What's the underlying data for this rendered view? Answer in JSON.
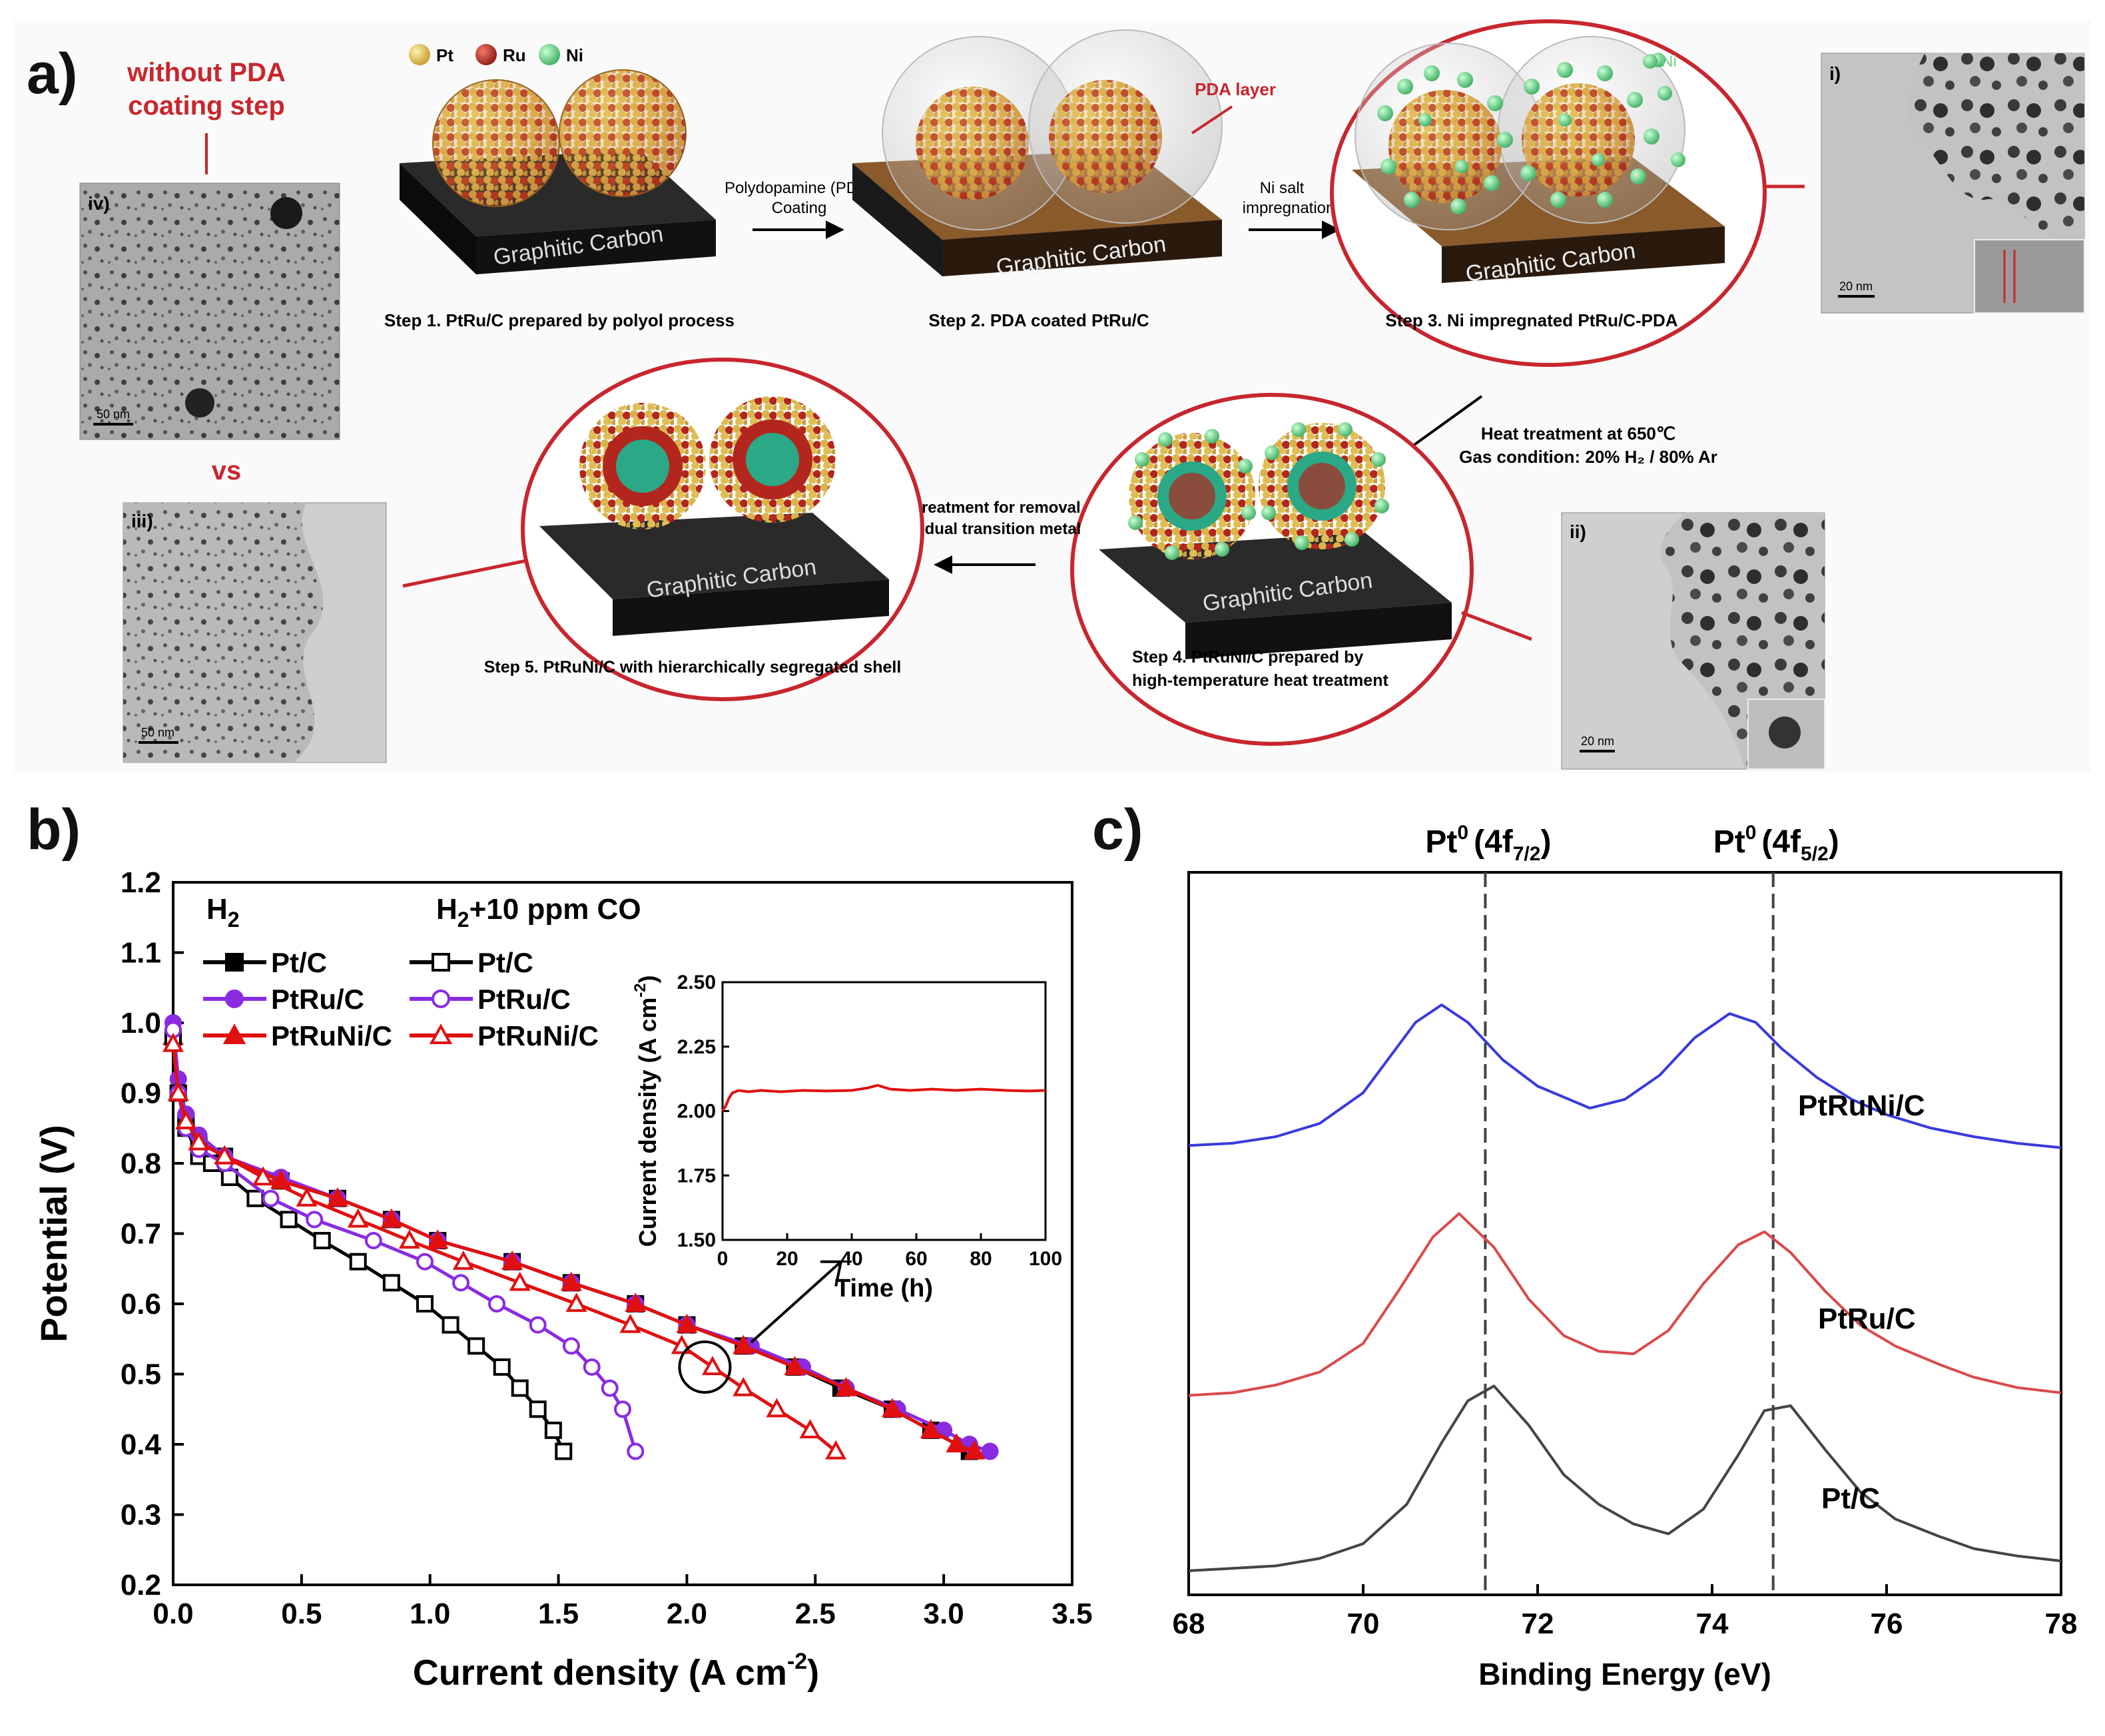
{
  "colors": {
    "pt": "#d8b44a",
    "ru": "#b3261e",
    "ni": "#6fd18a",
    "accent_red": "#c8262e",
    "pda": "#8a5a2b",
    "carbon": "#1f1f1f",
    "blue": "#3a3adb",
    "purple": "#8a2be2",
    "black": "#000000",
    "grey": "#444444",
    "light_red": "#d94a4a"
  },
  "panel_a": {
    "label": "a)",
    "without_pda_line1": "without PDA",
    "without_pda_line2": "coating step",
    "vs": "vs",
    "legend": {
      "pt": "Pt",
      "ru": "Ru",
      "ni": "Ni"
    },
    "ni_label": "Ni",
    "pda_layer": "PDA layer",
    "carbon_label": "Graphitic Carbon",
    "arrow1_line1": "Polydopamine (PDA)",
    "arrow1_line2": "Coating",
    "arrow2_line1": "Ni salt",
    "arrow2_line2": "impregnation",
    "heat_line1": "Heat treatment at 650℃",
    "heat_line2": "Gas condition: 20% H₂ / 80% Ar",
    "acid_line1": "Acid treatment for removal",
    "acid_line2": "of residual transition metal",
    "step1": "Step 1. PtRu/C prepared by polyol process",
    "step2": "Step 2. PDA coated PtRu/C",
    "step3": "Step 3. Ni impregnated PtRu/C-PDA",
    "step4_line1": "Step 4. PtRuNi/C prepared by",
    "step4_line2": "high-temperature heat treatment",
    "step5": "Step 5. PtRuNi/C with hierarchically segregated shell",
    "tem": [
      {
        "id": "i)",
        "scale": "20 nm"
      },
      {
        "id": "ii)",
        "scale": "20 nm"
      },
      {
        "id": "iii)",
        "scale": "50 nm"
      },
      {
        "id": "iv)",
        "scale": "50 nm"
      }
    ]
  },
  "chart_data": [
    {
      "panel": "b)",
      "type": "line",
      "xlabel": "Current density (A cm",
      "xlabel_sup": "-2",
      "xlabel_tail": ")",
      "ylabel": "Potential (V)",
      "xlim": [
        0,
        3.5
      ],
      "ylim": [
        0.2,
        1.2
      ],
      "xticks": [
        "0.0",
        "0.5",
        "1.0",
        "1.5",
        "2.0",
        "2.5",
        "3.0",
        "3.5"
      ],
      "yticks": [
        "0.2",
        "0.3",
        "0.4",
        "0.5",
        "0.6",
        "0.7",
        "0.8",
        "0.9",
        "1.0",
        "1.1",
        "1.2"
      ],
      "legend_h2_title": "H",
      "legend_h2_sub": "2",
      "legend_co_title_a": "H",
      "legend_co_title_sub": "2",
      "legend_co_title_b": "+10 ppm CO",
      "series": [
        {
          "name": "Pt/C",
          "group": "H2",
          "color": "#000000",
          "marker": "square",
          "filled": true,
          "x": [
            0.0,
            0.02,
            0.05,
            0.1,
            0.2,
            0.42,
            0.64,
            0.85,
            1.03,
            1.32,
            1.55,
            1.8,
            2.0,
            2.22,
            2.42,
            2.6,
            2.8,
            2.95,
            3.1
          ],
          "y": [
            0.98,
            0.9,
            0.86,
            0.83,
            0.81,
            0.775,
            0.75,
            0.72,
            0.69,
            0.66,
            0.63,
            0.6,
            0.57,
            0.54,
            0.51,
            0.48,
            0.45,
            0.42,
            0.39
          ]
        },
        {
          "name": "PtRu/C",
          "group": "H2",
          "color": "#8a2be2",
          "marker": "circle",
          "filled": true,
          "x": [
            0.0,
            0.02,
            0.05,
            0.1,
            0.2,
            0.42,
            0.64,
            0.85,
            1.03,
            1.32,
            1.55,
            1.8,
            2.0,
            2.25,
            2.45,
            2.62,
            2.82,
            3.0,
            3.1,
            3.18
          ],
          "y": [
            1.0,
            0.92,
            0.87,
            0.84,
            0.81,
            0.78,
            0.75,
            0.72,
            0.69,
            0.66,
            0.63,
            0.6,
            0.57,
            0.54,
            0.51,
            0.48,
            0.45,
            0.42,
            0.4,
            0.39
          ]
        },
        {
          "name": "PtRuNi/C",
          "group": "H2",
          "color": "#e01010",
          "marker": "triangle",
          "filled": true,
          "x": [
            0.0,
            0.02,
            0.05,
            0.1,
            0.2,
            0.42,
            0.64,
            0.85,
            1.03,
            1.32,
            1.55,
            1.8,
            2.0,
            2.22,
            2.42,
            2.62,
            2.8,
            2.95,
            3.05,
            3.12
          ],
          "y": [
            0.98,
            0.9,
            0.86,
            0.83,
            0.81,
            0.775,
            0.75,
            0.72,
            0.69,
            0.66,
            0.63,
            0.6,
            0.57,
            0.54,
            0.51,
            0.48,
            0.45,
            0.42,
            0.4,
            0.39
          ]
        },
        {
          "name": "Pt/C",
          "group": "CO",
          "color": "#000000",
          "marker": "square",
          "filled": false,
          "x": [
            0.0,
            0.02,
            0.05,
            0.1,
            0.15,
            0.22,
            0.32,
            0.45,
            0.58,
            0.72,
            0.85,
            0.98,
            1.08,
            1.18,
            1.28,
            1.35,
            1.42,
            1.48,
            1.52
          ],
          "y": [
            0.98,
            0.9,
            0.85,
            0.81,
            0.8,
            0.78,
            0.75,
            0.72,
            0.69,
            0.66,
            0.63,
            0.6,
            0.57,
            0.54,
            0.51,
            0.48,
            0.45,
            0.42,
            0.39
          ]
        },
        {
          "name": "PtRu/C",
          "group": "CO",
          "color": "#8a2be2",
          "marker": "circle",
          "filled": false,
          "x": [
            0.0,
            0.02,
            0.05,
            0.1,
            0.2,
            0.38,
            0.55,
            0.78,
            0.98,
            1.12,
            1.26,
            1.42,
            1.55,
            1.63,
            1.7,
            1.75,
            1.8
          ],
          "y": [
            0.99,
            0.9,
            0.85,
            0.82,
            0.8,
            0.75,
            0.72,
            0.69,
            0.66,
            0.63,
            0.6,
            0.57,
            0.54,
            0.51,
            0.48,
            0.45,
            0.39
          ]
        },
        {
          "name": "PtRuNi/C",
          "group": "CO",
          "color": "#e01010",
          "marker": "triangle",
          "filled": false,
          "x": [
            0.0,
            0.02,
            0.05,
            0.1,
            0.2,
            0.35,
            0.52,
            0.72,
            0.92,
            1.13,
            1.35,
            1.57,
            1.78,
            1.98,
            2.1,
            2.22,
            2.35,
            2.48,
            2.58
          ],
          "y": [
            0.97,
            0.9,
            0.86,
            0.83,
            0.81,
            0.78,
            0.75,
            0.72,
            0.69,
            0.66,
            0.63,
            0.6,
            0.57,
            0.54,
            0.51,
            0.48,
            0.45,
            0.42,
            0.39
          ]
        }
      ],
      "inset": {
        "type": "line",
        "xlabel": "Time (h)",
        "ylabel": "Current density (A cm",
        "ylabel_sup": "-2",
        "ylabel_tail": ")",
        "xlim": [
          0,
          100
        ],
        "ylim": [
          1.5,
          2.5
        ],
        "xticks": [
          "0",
          "20",
          "40",
          "60",
          "80",
          "100"
        ],
        "yticks": [
          "1.50",
          "1.75",
          "2.00",
          "2.25",
          "2.50"
        ],
        "color": "#e01010",
        "x": [
          0,
          1,
          2,
          3,
          5,
          8,
          12,
          18,
          25,
          32,
          40,
          45,
          48,
          52,
          58,
          65,
          72,
          80,
          88,
          95,
          100
        ],
        "y": [
          2.0,
          2.02,
          2.05,
          2.07,
          2.08,
          2.075,
          2.08,
          2.075,
          2.08,
          2.078,
          2.08,
          2.09,
          2.1,
          2.085,
          2.08,
          2.085,
          2.08,
          2.085,
          2.08,
          2.078,
          2.08
        ]
      }
    },
    {
      "panel": "c)",
      "type": "line",
      "xlabel": "Binding Energy (eV)",
      "xlim": [
        68,
        78
      ],
      "xticks": [
        "68",
        "70",
        "72",
        "74",
        "76",
        "78"
      ],
      "peak1_label": "Pt",
      "peak1_sup": "0",
      "peak1_open": "(4f",
      "peak1_sub": "7/2",
      "peak1_close": ")",
      "peak2_label": "Pt",
      "peak2_sup": "0",
      "peak2_open": "(4f",
      "peak2_sub": "5/2",
      "peak2_close": ")",
      "peak_positions_ev": [
        71.4,
        74.7
      ],
      "series": [
        {
          "name": "PtRuNi/C",
          "color": "#3a3adb",
          "x": [
            68,
            68.5,
            69,
            69.5,
            70,
            70.3,
            70.6,
            70.9,
            71.2,
            71.6,
            72,
            72.3,
            72.6,
            73,
            73.4,
            73.8,
            74.2,
            74.5,
            74.8,
            75.2,
            75.6,
            76,
            76.5,
            77,
            77.5,
            78
          ],
          "y": [
            0.06,
            0.07,
            0.1,
            0.16,
            0.3,
            0.46,
            0.62,
            0.7,
            0.62,
            0.45,
            0.33,
            0.28,
            0.23,
            0.27,
            0.38,
            0.55,
            0.66,
            0.62,
            0.5,
            0.37,
            0.27,
            0.2,
            0.14,
            0.1,
            0.07,
            0.05
          ]
        },
        {
          "name": "PtRu/C",
          "color": "#d94a4a",
          "x": [
            68,
            68.5,
            69,
            69.5,
            70,
            70.4,
            70.8,
            71.1,
            71.5,
            71.9,
            72.3,
            72.7,
            73.1,
            73.5,
            73.9,
            74.3,
            74.6,
            74.9,
            75.3,
            75.7,
            76.1,
            76.6,
            77,
            77.5,
            78
          ],
          "y": [
            0.05,
            0.06,
            0.09,
            0.14,
            0.25,
            0.45,
            0.66,
            0.75,
            0.62,
            0.42,
            0.28,
            0.22,
            0.21,
            0.3,
            0.48,
            0.63,
            0.68,
            0.6,
            0.45,
            0.32,
            0.24,
            0.17,
            0.12,
            0.08,
            0.06
          ]
        },
        {
          "name": "Pt/C",
          "color": "#444444",
          "x": [
            68,
            68.5,
            69,
            69.5,
            70,
            70.5,
            70.9,
            71.2,
            71.5,
            71.9,
            72.3,
            72.7,
            73.1,
            73.5,
            73.9,
            74.3,
            74.6,
            74.9,
            75.3,
            75.7,
            76.1,
            76.6,
            77,
            77.5,
            78
          ],
          "y": [
            0.03,
            0.04,
            0.05,
            0.08,
            0.14,
            0.3,
            0.55,
            0.72,
            0.78,
            0.62,
            0.42,
            0.3,
            0.22,
            0.18,
            0.28,
            0.5,
            0.68,
            0.7,
            0.52,
            0.35,
            0.24,
            0.17,
            0.12,
            0.09,
            0.07
          ]
        }
      ]
    }
  ]
}
